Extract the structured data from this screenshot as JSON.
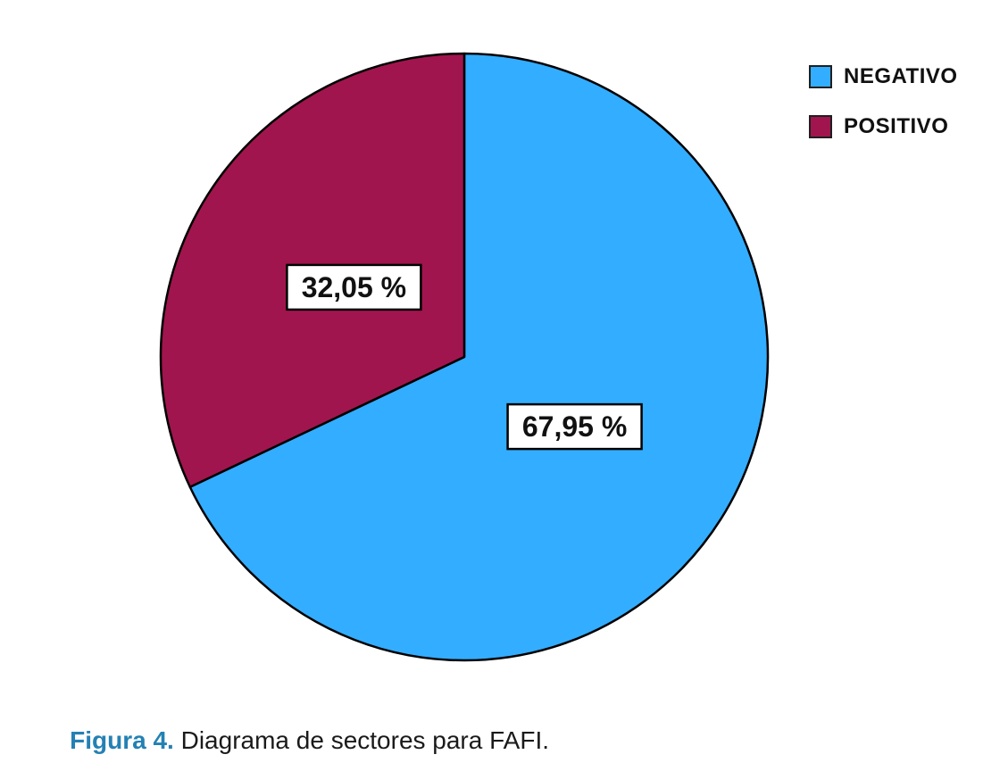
{
  "figure": {
    "caption_prefix": "Figura 4.",
    "caption_text": " Diagrama de sectores para FAFI."
  },
  "chart_data": {
    "type": "pie",
    "title": "",
    "slices": [
      {
        "label": "NEGATIVO",
        "value": 67.95,
        "display": "67,95 %",
        "color": "#33ADFF"
      },
      {
        "label": "POSITIVO",
        "value": 32.05,
        "display": "32,05 %",
        "color": "#A1154E"
      }
    ],
    "start_angle_deg": -90,
    "direction": "clockwise",
    "legend_position": "top-right",
    "slice_border_color": "#000000",
    "label_box": {
      "fill": "#FFFFFF",
      "border": "#000000"
    }
  },
  "colors": {
    "caption_accent": "#2481B4",
    "text": "#1A1A1A"
  }
}
